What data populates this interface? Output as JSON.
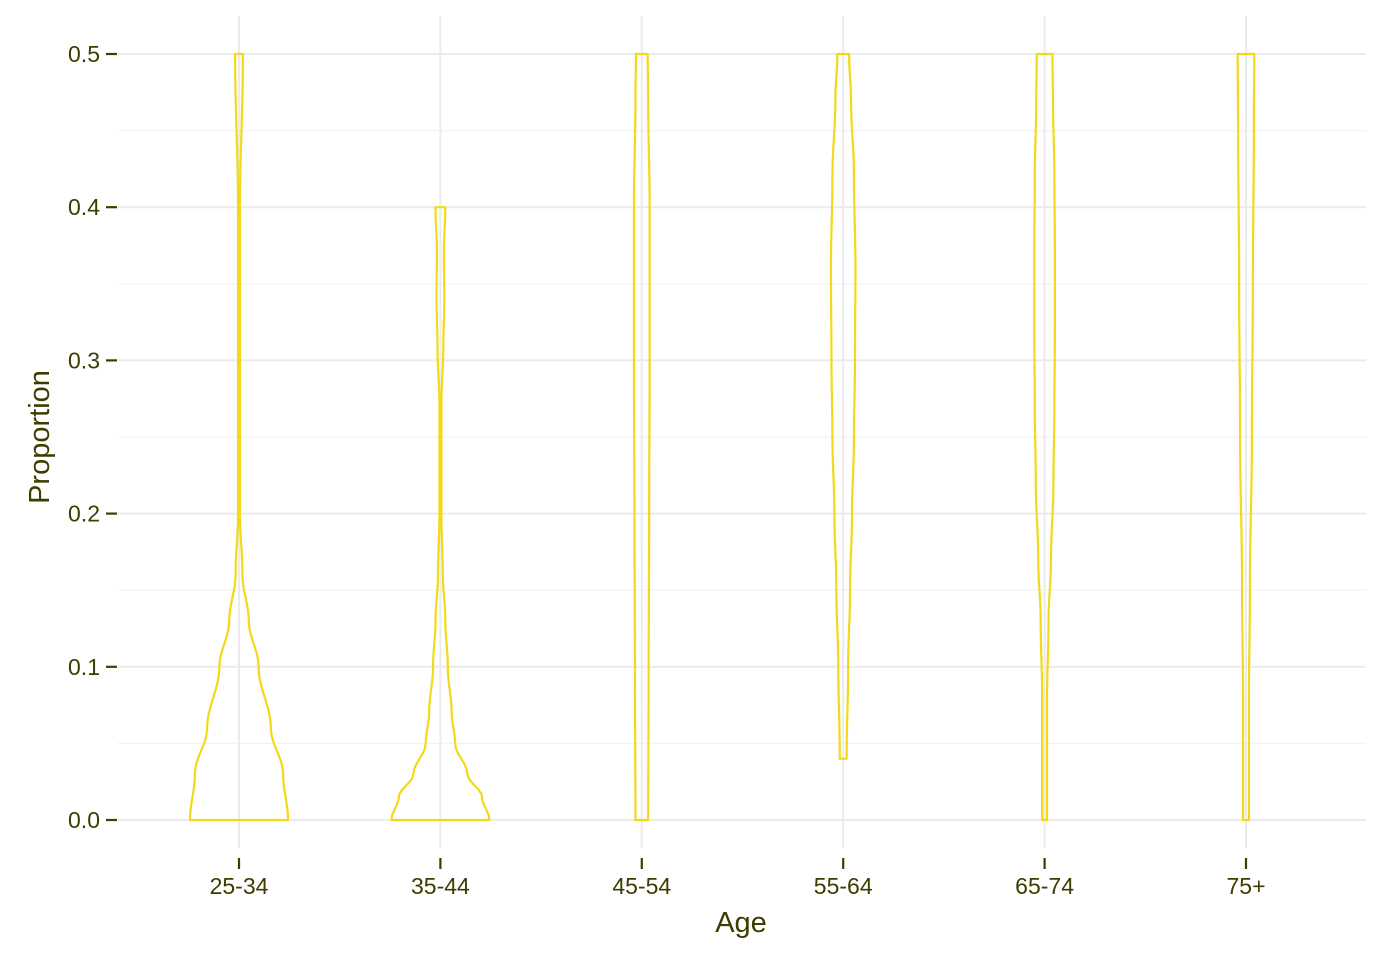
{
  "colors": {
    "violin_stroke": "#F2D91A",
    "grid_major": "#EBEBEB",
    "grid_minor": "#F2F2F2",
    "axis_text": "#3D3D00",
    "tick": "#3D3D00",
    "background": "#FFFFFF"
  },
  "chart_data": {
    "type": "violin",
    "title": "",
    "xlabel": "Age",
    "ylabel": "Proportion",
    "ylim": [
      0,
      0.5
    ],
    "yticks": [
      0.0,
      0.1,
      0.2,
      0.3,
      0.4,
      0.5
    ],
    "ytick_labels": [
      "0.0",
      "0.1",
      "0.2",
      "0.3",
      "0.4",
      "0.5"
    ],
    "categories": [
      "25-34",
      "35-44",
      "45-54",
      "55-64",
      "65-74",
      "75+"
    ],
    "grid": true,
    "legend": "none",
    "violins": [
      {
        "category": "25-34",
        "min": 0.0,
        "max": 0.5,
        "profile": [
          [
            0.0,
            1.0
          ],
          [
            0.03,
            0.9
          ],
          [
            0.06,
            0.65
          ],
          [
            0.1,
            0.4
          ],
          [
            0.13,
            0.2
          ],
          [
            0.16,
            0.07
          ],
          [
            0.2,
            0.02
          ],
          [
            0.3,
            0.02
          ],
          [
            0.4,
            0.02
          ],
          [
            0.5,
            0.08
          ]
        ]
      },
      {
        "category": "35-44",
        "min": 0.0,
        "max": 0.4,
        "profile": [
          [
            0.0,
            1.0
          ],
          [
            0.015,
            0.85
          ],
          [
            0.03,
            0.55
          ],
          [
            0.05,
            0.3
          ],
          [
            0.07,
            0.23
          ],
          [
            0.1,
            0.15
          ],
          [
            0.13,
            0.1
          ],
          [
            0.16,
            0.05
          ],
          [
            0.2,
            0.02
          ],
          [
            0.27,
            0.02
          ],
          [
            0.31,
            0.06
          ],
          [
            0.34,
            0.08
          ],
          [
            0.37,
            0.07
          ],
          [
            0.4,
            0.1
          ]
        ]
      },
      {
        "category": "45-54",
        "min": 0.0,
        "max": 0.5,
        "profile": [
          [
            0.0,
            0.13
          ],
          [
            0.1,
            0.14
          ],
          [
            0.2,
            0.15
          ],
          [
            0.3,
            0.16
          ],
          [
            0.4,
            0.16
          ],
          [
            0.47,
            0.13
          ],
          [
            0.5,
            0.12
          ]
        ]
      },
      {
        "category": "55-64",
        "min": 0.04,
        "max": 0.5,
        "profile": [
          [
            0.04,
            0.07
          ],
          [
            0.1,
            0.1
          ],
          [
            0.15,
            0.14
          ],
          [
            0.2,
            0.18
          ],
          [
            0.25,
            0.22
          ],
          [
            0.3,
            0.24
          ],
          [
            0.36,
            0.25
          ],
          [
            0.42,
            0.22
          ],
          [
            0.47,
            0.16
          ],
          [
            0.5,
            0.12
          ]
        ]
      },
      {
        "category": "65-74",
        "min": 0.0,
        "max": 0.5,
        "profile": [
          [
            0.0,
            0.05
          ],
          [
            0.08,
            0.05
          ],
          [
            0.13,
            0.08
          ],
          [
            0.17,
            0.13
          ],
          [
            0.22,
            0.18
          ],
          [
            0.27,
            0.2
          ],
          [
            0.32,
            0.21
          ],
          [
            0.37,
            0.21
          ],
          [
            0.42,
            0.2
          ],
          [
            0.47,
            0.17
          ],
          [
            0.5,
            0.16
          ]
        ]
      },
      {
        "category": "75+",
        "min": 0.0,
        "max": 0.5,
        "profile": [
          [
            0.0,
            0.06
          ],
          [
            0.08,
            0.06
          ],
          [
            0.15,
            0.08
          ],
          [
            0.25,
            0.12
          ],
          [
            0.35,
            0.14
          ],
          [
            0.45,
            0.16
          ],
          [
            0.5,
            0.17
          ]
        ]
      }
    ]
  }
}
